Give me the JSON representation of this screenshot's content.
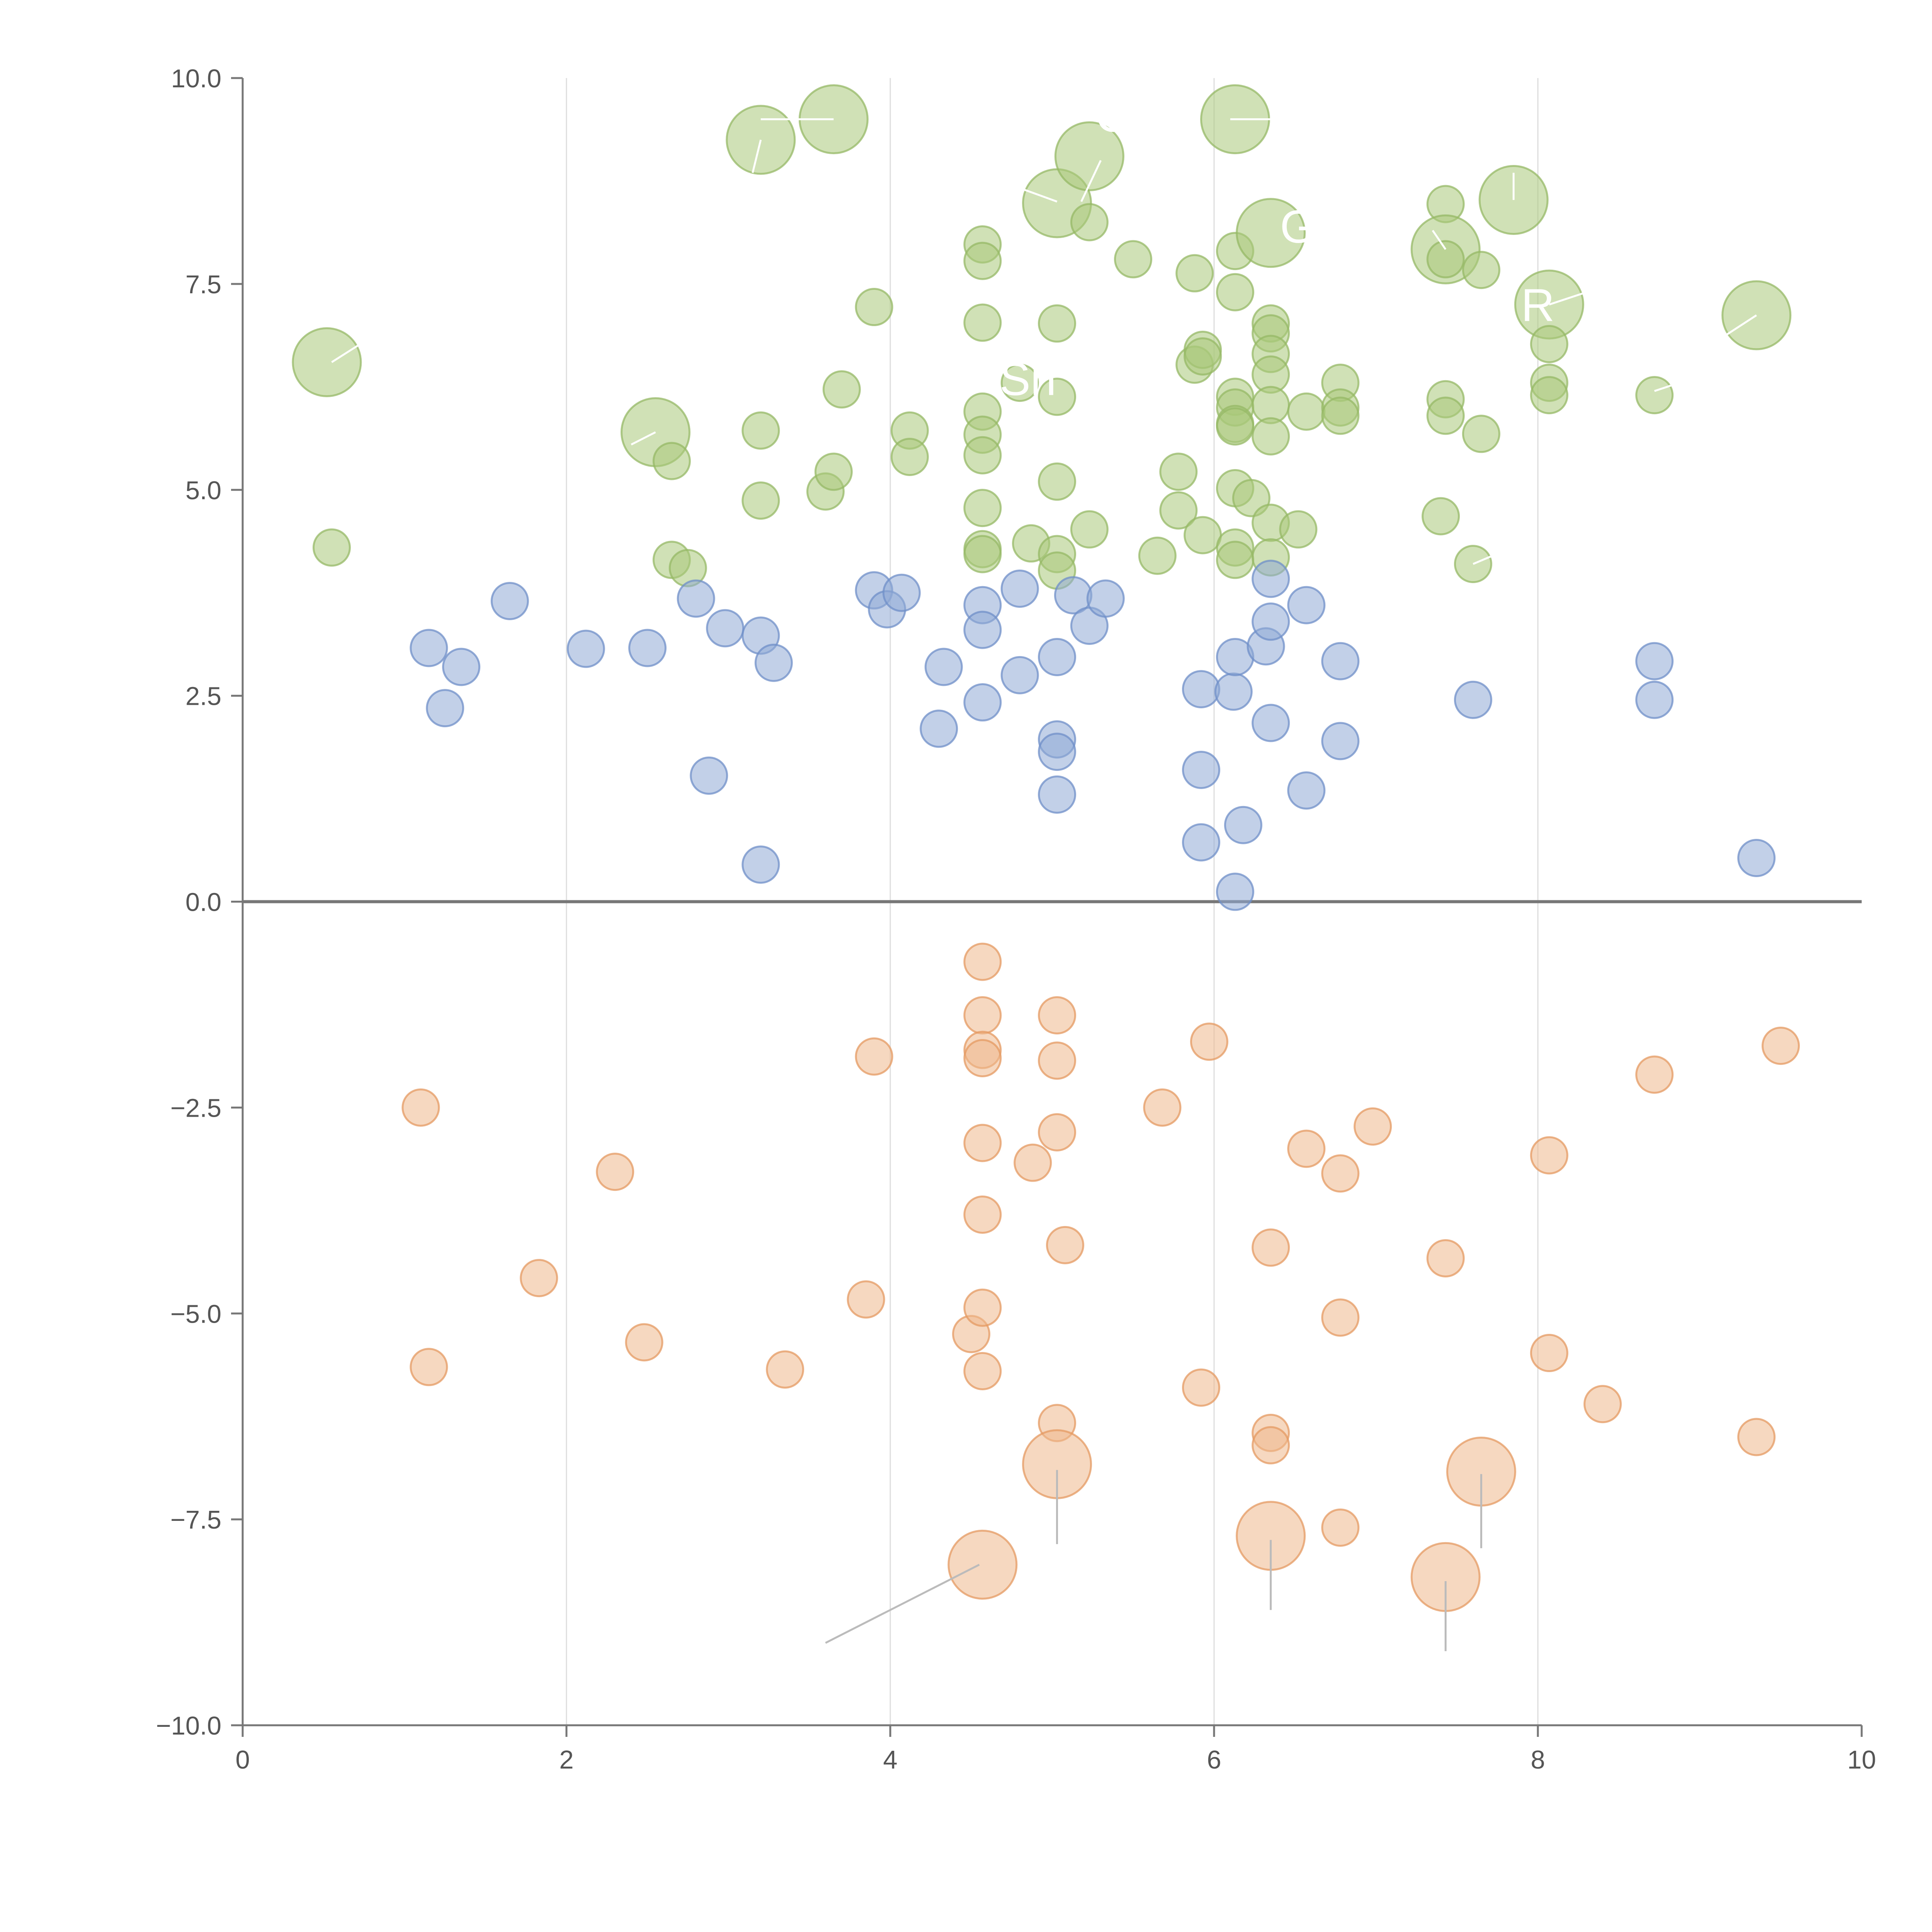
{
  "chart_data": {
    "type": "scatter",
    "title": "",
    "xlabel": "",
    "ylabel": "",
    "xlim": [
      0,
      10
    ],
    "ylim": [
      -10,
      10
    ],
    "x_ticks": [
      "0",
      "2",
      "4",
      "6",
      "8",
      "10"
    ],
    "y_ticks": [
      "−10.0",
      "−7.5",
      "−5.0",
      "−2.5",
      "0.0",
      "2.5",
      "5.0",
      "7.5",
      "10.0"
    ],
    "x_tick_values": [
      0,
      2,
      4,
      6,
      8,
      10
    ],
    "y_tick_values": [
      -10,
      -7.5,
      -5,
      -2.5,
      0,
      2.5,
      5,
      7.5,
      10
    ],
    "vertical_gridlines_at": [
      2,
      4,
      6,
      8
    ],
    "zero_line": true,
    "legend": "none",
    "series": [
      {
        "name": "green",
        "color": "#a9c97a",
        "stroke": "#95b865",
        "points": [
          [
            0.52,
            6.55,
            1
          ],
          [
            0.55,
            4.3,
            0
          ],
          [
            2.55,
            5.7,
            1
          ],
          [
            2.65,
            5.35,
            0
          ],
          [
            2.65,
            4.15,
            0
          ],
          [
            2.75,
            4.05,
            0
          ],
          [
            3.2,
            9.25,
            1
          ],
          [
            3.65,
            9.5,
            1
          ],
          [
            3.2,
            5.72,
            0
          ],
          [
            3.2,
            4.87,
            0
          ],
          [
            3.6,
            4.98,
            0
          ],
          [
            3.65,
            5.22,
            0
          ],
          [
            3.7,
            6.22,
            0
          ],
          [
            3.9,
            7.22,
            0
          ],
          [
            4.12,
            5.72,
            0
          ],
          [
            4.12,
            5.4,
            0
          ],
          [
            4.57,
            7.98,
            0
          ],
          [
            4.57,
            7.78,
            0
          ],
          [
            4.57,
            7.03,
            0
          ],
          [
            4.57,
            5.95,
            0
          ],
          [
            4.57,
            5.67,
            0
          ],
          [
            4.57,
            5.42,
            0
          ],
          [
            4.57,
            4.78,
            0
          ],
          [
            4.57,
            4.28,
            0
          ],
          [
            4.57,
            4.22,
            0
          ],
          [
            4.8,
            6.3,
            0
          ],
          [
            4.87,
            4.35,
            0
          ],
          [
            5.03,
            8.48,
            1
          ],
          [
            5.03,
            7.02,
            0
          ],
          [
            5.03,
            6.13,
            0
          ],
          [
            5.03,
            5.1,
            0
          ],
          [
            5.03,
            4.22,
            0
          ],
          [
            5.03,
            4.02,
            0
          ],
          [
            5.23,
            9.05,
            1
          ],
          [
            5.23,
            8.25,
            0
          ],
          [
            5.23,
            4.52,
            0
          ],
          [
            5.5,
            7.8,
            0
          ],
          [
            5.65,
            4.2,
            0
          ],
          [
            5.78,
            5.22,
            0
          ],
          [
            5.78,
            4.75,
            0
          ],
          [
            5.88,
            7.63,
            0
          ],
          [
            5.88,
            6.52,
            0
          ],
          [
            5.93,
            6.7,
            0
          ],
          [
            5.93,
            6.62,
            0
          ],
          [
            5.93,
            4.45,
            0
          ],
          [
            6.13,
            9.5,
            1
          ],
          [
            6.13,
            7.9,
            0
          ],
          [
            6.13,
            7.4,
            0
          ],
          [
            6.13,
            6.13,
            0
          ],
          [
            6.13,
            6.0,
            0
          ],
          [
            6.13,
            5.8,
            0
          ],
          [
            6.13,
            5.77,
            0
          ],
          [
            6.13,
            5.02,
            0
          ],
          [
            6.13,
            4.3,
            0
          ],
          [
            6.13,
            4.15,
            0
          ],
          [
            6.23,
            4.9,
            0
          ],
          [
            6.35,
            8.12,
            1
          ],
          [
            6.35,
            7.02,
            0
          ],
          [
            6.35,
            6.9,
            0
          ],
          [
            6.35,
            6.65,
            0
          ],
          [
            6.35,
            6.4,
            0
          ],
          [
            6.35,
            6.03,
            0
          ],
          [
            6.35,
            5.65,
            0
          ],
          [
            6.35,
            4.6,
            0
          ],
          [
            6.35,
            4.18,
            0
          ],
          [
            6.52,
            4.52,
            0
          ],
          [
            6.57,
            5.95,
            0
          ],
          [
            6.78,
            6.3,
            0
          ],
          [
            6.78,
            6.0,
            0
          ],
          [
            6.78,
            5.9,
            0
          ],
          [
            7.4,
            4.68,
            0
          ],
          [
            7.43,
            8.47,
            0
          ],
          [
            7.43,
            7.92,
            1
          ],
          [
            7.43,
            7.8,
            0
          ],
          [
            7.43,
            6.1,
            0
          ],
          [
            7.43,
            5.9,
            0
          ],
          [
            7.6,
            4.1,
            0
          ],
          [
            7.65,
            7.67,
            0
          ],
          [
            7.65,
            5.68,
            0
          ],
          [
            7.85,
            8.52,
            1
          ],
          [
            8.07,
            7.25,
            1
          ],
          [
            8.07,
            6.77,
            0
          ],
          [
            8.07,
            6.3,
            0
          ],
          [
            8.07,
            6.15,
            0
          ],
          [
            8.72,
            6.15,
            0
          ],
          [
            9.35,
            7.12,
            1
          ]
        ]
      },
      {
        "name": "blue",
        "color": "#8faad6",
        "stroke": "#6f8fc8",
        "points": [
          [
            1.15,
            3.08,
            0
          ],
          [
            1.25,
            2.35,
            0
          ],
          [
            1.35,
            2.85,
            0
          ],
          [
            1.65,
            3.65,
            0
          ],
          [
            2.12,
            3.07,
            0
          ],
          [
            2.5,
            3.08,
            0
          ],
          [
            2.8,
            3.68,
            0
          ],
          [
            2.88,
            1.53,
            0
          ],
          [
            2.98,
            3.32,
            0
          ],
          [
            3.2,
            3.23,
            0
          ],
          [
            3.2,
            0.45,
            0
          ],
          [
            3.28,
            2.9,
            0
          ],
          [
            3.9,
            3.78,
            0
          ],
          [
            3.98,
            3.55,
            0
          ],
          [
            4.07,
            3.75,
            0
          ],
          [
            4.3,
            2.1,
            0
          ],
          [
            4.33,
            2.85,
            0
          ],
          [
            4.57,
            3.6,
            0
          ],
          [
            4.57,
            3.3,
            0
          ],
          [
            4.57,
            2.42,
            0
          ],
          [
            4.8,
            3.8,
            0
          ],
          [
            4.8,
            2.75,
            0
          ],
          [
            5.03,
            2.97,
            0
          ],
          [
            5.03,
            1.97,
            0
          ],
          [
            5.03,
            1.82,
            0
          ],
          [
            5.03,
            1.3,
            0
          ],
          [
            5.13,
            3.72,
            0
          ],
          [
            5.23,
            3.35,
            0
          ],
          [
            5.33,
            3.68,
            0
          ],
          [
            5.92,
            2.58,
            0
          ],
          [
            5.92,
            1.6,
            0
          ],
          [
            5.92,
            0.72,
            0
          ],
          [
            6.12,
            2.55,
            0
          ],
          [
            6.13,
            2.97,
            0
          ],
          [
            6.13,
            0.12,
            0
          ],
          [
            6.18,
            0.93,
            0
          ],
          [
            6.32,
            3.1,
            0
          ],
          [
            6.35,
            3.92,
            0
          ],
          [
            6.35,
            3.4,
            0
          ],
          [
            6.35,
            2.17,
            0
          ],
          [
            6.57,
            3.6,
            0
          ],
          [
            6.57,
            1.35,
            0
          ],
          [
            6.78,
            2.92,
            0
          ],
          [
            6.78,
            1.95,
            0
          ],
          [
            7.6,
            2.45,
            0
          ],
          [
            8.72,
            2.92,
            0
          ],
          [
            8.72,
            2.45,
            0
          ],
          [
            9.35,
            0.53,
            0
          ]
        ]
      },
      {
        "name": "orange",
        "color": "#efb88c",
        "stroke": "#e49a62",
        "points": [
          [
            1.1,
            -2.5,
            0
          ],
          [
            1.15,
            -5.65,
            0
          ],
          [
            1.83,
            -4.57,
            0
          ],
          [
            2.3,
            -3.28,
            0
          ],
          [
            2.48,
            -5.35,
            0
          ],
          [
            3.35,
            -5.68,
            0
          ],
          [
            3.85,
            -4.83,
            0
          ],
          [
            3.9,
            -1.88,
            0
          ],
          [
            4.5,
            -5.25,
            0
          ],
          [
            4.57,
            -0.73,
            0
          ],
          [
            4.57,
            -1.38,
            0
          ],
          [
            4.57,
            -1.8,
            0
          ],
          [
            4.57,
            -1.9,
            0
          ],
          [
            4.57,
            -2.93,
            0
          ],
          [
            4.57,
            -3.8,
            0
          ],
          [
            4.57,
            -4.93,
            0
          ],
          [
            4.57,
            -5.7,
            0
          ],
          [
            4.57,
            -8.05,
            1
          ],
          [
            4.88,
            -3.17,
            0
          ],
          [
            5.03,
            -1.38,
            0
          ],
          [
            5.03,
            -1.93,
            0
          ],
          [
            5.03,
            -2.8,
            0
          ],
          [
            5.03,
            -6.33,
            0
          ],
          [
            5.03,
            -6.83,
            1
          ],
          [
            5.08,
            -4.17,
            0
          ],
          [
            5.68,
            -2.5,
            0
          ],
          [
            5.92,
            -5.9,
            0
          ],
          [
            5.97,
            -1.7,
            0
          ],
          [
            6.35,
            -4.2,
            0
          ],
          [
            6.35,
            -6.45,
            0
          ],
          [
            6.35,
            -6.6,
            0
          ],
          [
            6.35,
            -7.7,
            1
          ],
          [
            6.57,
            -3.0,
            0
          ],
          [
            6.78,
            -3.3,
            0
          ],
          [
            6.78,
            -5.05,
            0
          ],
          [
            6.78,
            -7.6,
            0
          ],
          [
            6.98,
            -2.73,
            0
          ],
          [
            7.43,
            -4.33,
            0
          ],
          [
            7.43,
            -8.2,
            1
          ],
          [
            7.65,
            -6.92,
            1
          ],
          [
            8.07,
            -3.08,
            0
          ],
          [
            8.07,
            -5.48,
            0
          ],
          [
            8.4,
            -6.1,
            0
          ],
          [
            8.72,
            -2.1,
            0
          ],
          [
            9.35,
            -6.5,
            0
          ],
          [
            9.5,
            -1.75,
            0
          ]
        ]
      }
    ],
    "annotations": [
      {
        "text": "C",
        "x": 5.37,
        "y": 9.5
      },
      {
        "text": "Gl",
        "x": 6.55,
        "y": 8.15
      },
      {
        "text": "R",
        "x": 8.0,
        "y": 7.2
      },
      {
        "text": "Sh",
        "x": 4.85,
        "y": 6.3
      }
    ],
    "leader_lines": [
      {
        "from": [
          4.55,
          -8.05
        ],
        "to": [
          3.6,
          -9.0
        ],
        "color": "#bbbbbb"
      },
      {
        "from": [
          5.03,
          -6.9
        ],
        "to": [
          5.03,
          -7.8
        ],
        "color": "#bbbbbb"
      },
      {
        "from": [
          6.35,
          -7.75
        ],
        "to": [
          6.35,
          -8.6
        ],
        "color": "#bbbbbb"
      },
      {
        "from": [
          7.43,
          -8.25
        ],
        "to": [
          7.43,
          -9.1
        ],
        "color": "#bbbbbb"
      },
      {
        "from": [
          7.65,
          -6.95
        ],
        "to": [
          7.65,
          -7.85
        ],
        "color": "#bbbbbb"
      },
      {
        "from": [
          3.2,
          9.5
        ],
        "to": [
          3.65,
          9.5
        ],
        "color": "#ffffff"
      },
      {
        "from": [
          3.2,
          9.25
        ],
        "to": [
          3.15,
          8.85
        ],
        "color": "#ffffff"
      },
      {
        "from": [
          6.1,
          9.5
        ],
        "to": [
          6.4,
          9.5
        ],
        "color": "#ffffff"
      },
      {
        "from": [
          5.3,
          9.0
        ],
        "to": [
          5.18,
          8.5
        ],
        "color": "#ffffff"
      },
      {
        "from": [
          5.03,
          8.5
        ],
        "to": [
          4.75,
          8.7
        ],
        "color": "#ffffff"
      },
      {
        "from": [
          2.55,
          5.7
        ],
        "to": [
          2.4,
          5.55
        ],
        "color": "#ffffff"
      },
      {
        "from": [
          0.55,
          6.55
        ],
        "to": [
          0.75,
          6.8
        ],
        "color": "#ffffff"
      },
      {
        "from": [
          7.43,
          7.92
        ],
        "to": [
          7.35,
          8.15
        ],
        "color": "#ffffff"
      },
      {
        "from": [
          7.85,
          8.52
        ],
        "to": [
          7.85,
          8.85
        ],
        "color": "#ffffff"
      },
      {
        "from": [
          8.07,
          7.25
        ],
        "to": [
          8.3,
          7.4
        ],
        "color": "#ffffff"
      },
      {
        "from": [
          9.35,
          7.12
        ],
        "to": [
          9.1,
          6.8
        ],
        "color": "#ffffff"
      },
      {
        "from": [
          8.72,
          6.2
        ],
        "to": [
          8.95,
          6.35
        ],
        "color": "#ffffff"
      },
      {
        "from": [
          7.6,
          4.1
        ],
        "to": [
          7.78,
          4.25
        ],
        "color": "#ffffff"
      },
      {
        "from": [
          4.9,
          7.0
        ],
        "to": [
          4.8,
          6.6
        ],
        "color": "#ffffff"
      }
    ],
    "colors": {
      "axis": "#777777",
      "zero_line": "#777777",
      "gridline": "#dddddd",
      "tick_text": "#555555"
    }
  }
}
